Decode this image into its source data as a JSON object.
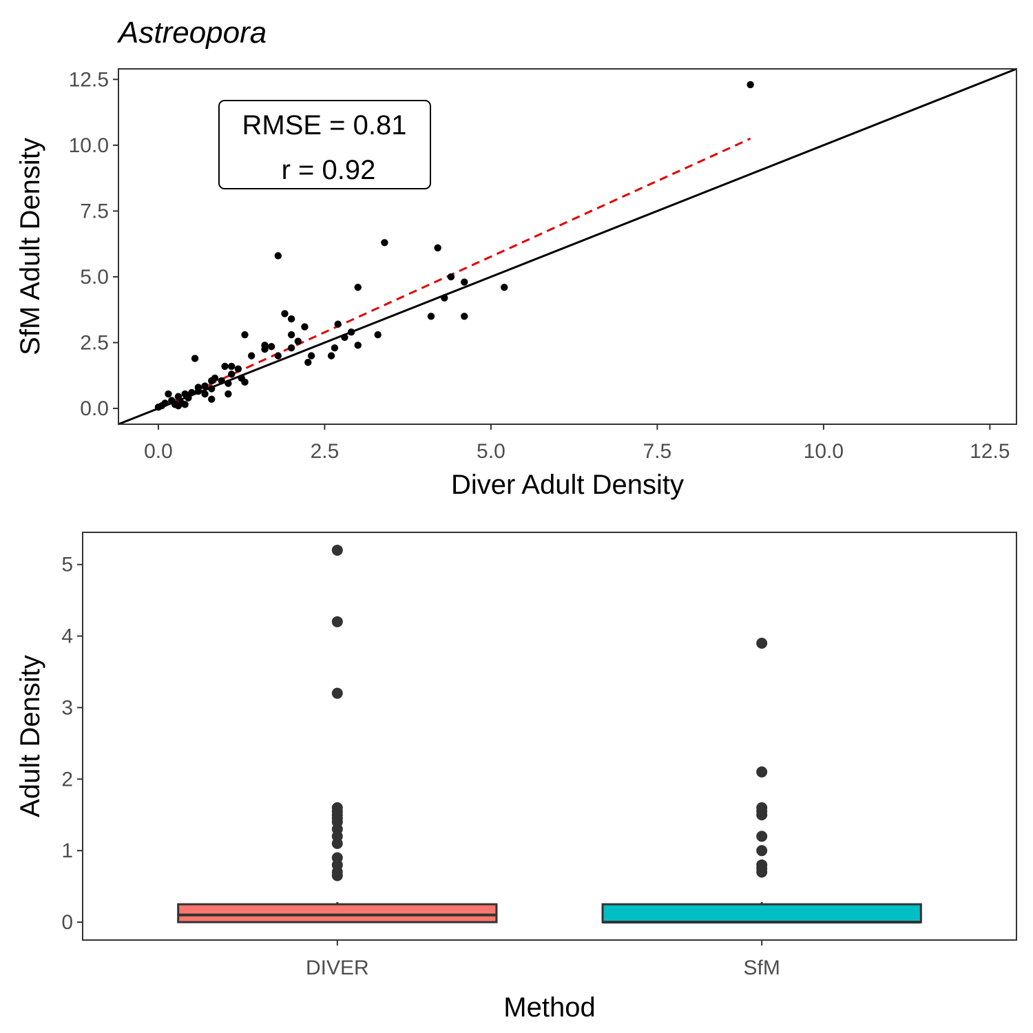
{
  "figure": {
    "title": "Astreopora"
  },
  "chart_data": [
    {
      "type": "scatter",
      "title": "Astreopora",
      "xlabel": "Diver Adult Density",
      "ylabel": "SfM Adult Density",
      "xlim": [
        -0.6,
        12.9
      ],
      "ylim": [
        -0.6,
        12.9
      ],
      "xticks": [
        "0.0",
        "2.5",
        "5.0",
        "7.5",
        "10.0",
        "12.5"
      ],
      "yticks": [
        "0.0",
        "2.5",
        "5.0",
        "7.5",
        "10.0",
        "12.5"
      ],
      "grid": false,
      "annotation": {
        "rmse": "RMSE = 0.81",
        "r": "r = 0.92"
      },
      "identity_line": {
        "color": "#000000",
        "style": "solid"
      },
      "fit_line": {
        "color": "#e00000",
        "style": "dashed",
        "x": [
          0.0,
          8.9
        ],
        "y": [
          0.02,
          10.25
        ]
      },
      "points": [
        [
          8.9,
          12.3
        ],
        [
          3.4,
          6.3
        ],
        [
          4.2,
          6.1
        ],
        [
          1.8,
          5.8
        ],
        [
          4.4,
          5.0
        ],
        [
          4.6,
          4.8
        ],
        [
          5.2,
          4.6
        ],
        [
          3.0,
          4.6
        ],
        [
          4.3,
          4.2
        ],
        [
          1.9,
          3.6
        ],
        [
          4.1,
          3.5
        ],
        [
          4.6,
          3.5
        ],
        [
          2.0,
          3.4
        ],
        [
          2.7,
          3.2
        ],
        [
          2.2,
          3.1
        ],
        [
          2.9,
          2.9
        ],
        [
          1.3,
          2.8
        ],
        [
          2.0,
          2.8
        ],
        [
          3.3,
          2.8
        ],
        [
          2.8,
          2.7
        ],
        [
          2.1,
          2.55
        ],
        [
          1.6,
          2.4
        ],
        [
          3.0,
          2.4
        ],
        [
          1.7,
          2.35
        ],
        [
          2.0,
          2.3
        ],
        [
          2.65,
          2.3
        ],
        [
          1.6,
          2.25
        ],
        [
          1.4,
          2.0
        ],
        [
          1.8,
          2.0
        ],
        [
          2.3,
          2.0
        ],
        [
          2.6,
          2.0
        ],
        [
          0.55,
          1.9
        ],
        [
          2.25,
          1.75
        ],
        [
          1.0,
          1.6
        ],
        [
          1.1,
          1.6
        ],
        [
          1.2,
          1.5
        ],
        [
          1.1,
          1.3
        ],
        [
          0.85,
          1.15
        ],
        [
          0.95,
          1.05
        ],
        [
          1.25,
          1.15
        ],
        [
          1.3,
          1.0
        ],
        [
          0.8,
          1.05
        ],
        [
          1.05,
          0.95
        ],
        [
          0.7,
          0.85
        ],
        [
          0.6,
          0.8
        ],
        [
          0.8,
          0.75
        ],
        [
          0.5,
          0.6
        ],
        [
          0.6,
          0.65
        ],
        [
          0.7,
          0.55
        ],
        [
          0.15,
          0.55
        ],
        [
          0.4,
          0.55
        ],
        [
          1.05,
          0.55
        ],
        [
          0.3,
          0.45
        ],
        [
          0.45,
          0.4
        ],
        [
          0.8,
          0.35
        ],
        [
          0.2,
          0.3
        ],
        [
          0.1,
          0.2
        ],
        [
          0.25,
          0.15
        ],
        [
          0.35,
          0.2
        ],
        [
          0.3,
          0.1
        ],
        [
          0.4,
          0.15
        ],
        [
          0.0,
          0.05
        ],
        [
          0.05,
          0.1
        ]
      ]
    },
    {
      "type": "box",
      "xlabel": "Method",
      "ylabel": "Adult Density",
      "ylim": [
        -0.25,
        5.45
      ],
      "yticks": [
        0,
        1,
        2,
        3,
        4,
        5
      ],
      "grid": false,
      "categories": [
        "DIVER",
        "SfM"
      ],
      "boxes": [
        {
          "category": "DIVER",
          "color": "#F8766D",
          "min": 0.0,
          "q1": 0.0,
          "median": 0.1,
          "q3": 0.25,
          "upper_whisker": 0.28,
          "outliers": [
            5.2,
            4.2,
            3.2,
            1.6,
            1.55,
            1.5,
            1.45,
            1.4,
            1.3,
            1.2,
            1.1,
            0.9,
            0.8,
            0.7,
            0.65
          ]
        },
        {
          "category": "SfM",
          "color": "#00BFC4",
          "min": 0.0,
          "q1": 0.0,
          "median": 0.0,
          "q3": 0.25,
          "upper_whisker": 0.28,
          "outliers": [
            3.9,
            2.1,
            1.6,
            1.55,
            1.5,
            1.2,
            1.0,
            0.8,
            0.75,
            0.7
          ]
        }
      ]
    }
  ]
}
